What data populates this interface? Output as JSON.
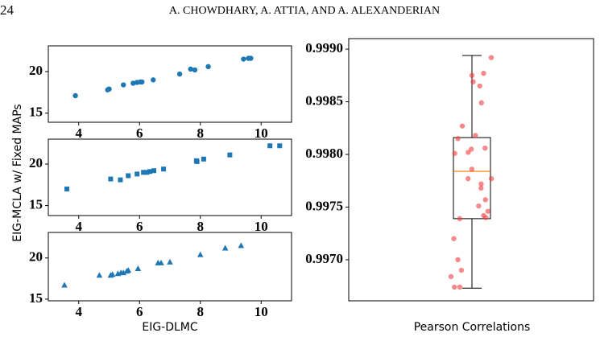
{
  "header": {
    "page_number": "24",
    "running_title": "A. CHOWDHARY, A. ATTIA, AND A. ALEXANDERIAN"
  },
  "figure": {
    "xlabel": "EIG-DLMC",
    "ylabel": "EIG-MCLA w/ Fixed MAPs"
  },
  "chart_data": [
    {
      "type": "scatter",
      "marker": "circle",
      "color": "#1f77b4",
      "x": [
        3.89,
        4.95,
        5.0,
        5.47,
        5.79,
        5.92,
        6.03,
        6.08,
        6.45,
        7.32,
        7.68,
        7.82,
        8.26,
        9.42,
        9.58,
        9.66
      ],
      "y": [
        17.1,
        17.8,
        17.9,
        18.4,
        18.6,
        18.7,
        18.75,
        18.75,
        19.0,
        19.7,
        20.3,
        20.2,
        20.6,
        21.5,
        21.6,
        21.6
      ],
      "xlim": [
        3.0,
        11.0
      ],
      "xticks": [
        4,
        6,
        8,
        10
      ],
      "ylim": [
        13.9,
        23.1
      ],
      "yticks": [
        15,
        20
      ]
    },
    {
      "type": "scatter",
      "marker": "square",
      "color": "#1f77b4",
      "x": [
        3.61,
        5.05,
        5.37,
        5.63,
        5.92,
        6.13,
        6.24,
        6.34,
        6.47,
        6.79,
        7.87,
        7.89,
        8.11,
        8.97,
        10.29,
        10.61
      ],
      "y": [
        17.0,
        18.2,
        18.1,
        18.6,
        18.8,
        19.0,
        19.0,
        19.1,
        19.2,
        19.4,
        20.4,
        20.3,
        20.6,
        21.1,
        22.2,
        22.2
      ],
      "xlim": [
        3.0,
        11.0
      ],
      "xticks": [
        4,
        6,
        8,
        10
      ],
      "ylim": [
        13.8,
        23.0
      ],
      "yticks": [
        15,
        20
      ]
    },
    {
      "type": "scatter",
      "marker": "triangle",
      "color": "#1f77b4",
      "x": [
        3.53,
        4.68,
        5.05,
        5.11,
        5.29,
        5.39,
        5.47,
        5.58,
        5.63,
        5.95,
        6.61,
        6.71,
        7.0,
        8.0,
        8.82,
        9.34
      ],
      "y": [
        16.7,
        17.9,
        17.9,
        18.0,
        18.1,
        18.2,
        18.2,
        18.4,
        18.5,
        18.7,
        19.4,
        19.4,
        19.5,
        20.4,
        21.2,
        21.5
      ],
      "xlim": [
        3.0,
        11.0
      ],
      "xticks": [
        4,
        6,
        8,
        10
      ],
      "ylim": [
        14.8,
        23.1
      ],
      "yticks": [
        15,
        20
      ]
    },
    {
      "type": "box",
      "categories": [
        "Pearson Correlations"
      ],
      "box": {
        "whisker_low": 0.99673,
        "q1": 0.99739,
        "median": 0.99784,
        "q3": 0.99816,
        "whisker_high": 0.99894
      },
      "median_color": "#ff7f0e",
      "point_color": "#f03c3c",
      "values": [
        0.99875,
        0.99892,
        0.99869,
        0.99877,
        0.99865,
        0.99849,
        0.99806,
        0.99818,
        0.99815,
        0.99827,
        0.99805,
        0.99802,
        0.99801,
        0.99786,
        0.99777,
        0.99772,
        0.99777,
        0.99768,
        0.99757,
        0.99751,
        0.99746,
        0.99742,
        0.9974,
        0.99739,
        0.9972,
        0.997,
        0.9969,
        0.99684,
        0.99674,
        0.99674
      ],
      "ylim": [
        0.99661,
        0.9991
      ],
      "yticks": [
        {
          "value": 0.997,
          "label": "0.9970"
        },
        {
          "value": 0.9975,
          "label": "0.9975"
        },
        {
          "value": 0.998,
          "label": "0.9980"
        },
        {
          "value": 0.9985,
          "label": "0.9985"
        },
        {
          "value": 0.999,
          "label": "0.9990"
        }
      ]
    }
  ]
}
